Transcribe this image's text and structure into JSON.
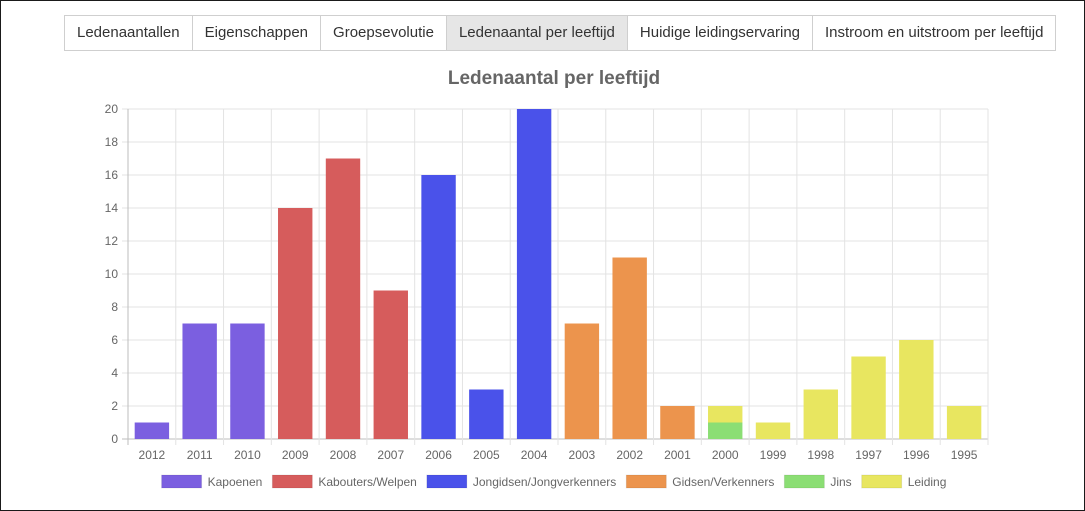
{
  "tabs": [
    {
      "label": "Ledenaantallen",
      "active": false
    },
    {
      "label": "Eigenschappen",
      "active": false
    },
    {
      "label": "Groepsevolutie",
      "active": false
    },
    {
      "label": "Ledenaantal per leeftijd",
      "active": true
    },
    {
      "label": "Huidige leidingservaring",
      "active": false
    },
    {
      "label": "Instroom en uitstroom per leeftijd",
      "active": false
    }
  ],
  "chart_data": {
    "type": "bar",
    "stacked": true,
    "title": "Ledenaantal per leeftijd",
    "categories": [
      "2012",
      "2011",
      "2010",
      "2009",
      "2008",
      "2007",
      "2006",
      "2005",
      "2004",
      "2003",
      "2002",
      "2001",
      "2000",
      "1999",
      "1998",
      "1997",
      "1996",
      "1995"
    ],
    "ylim": [
      0,
      20
    ],
    "yticks": [
      0,
      2,
      4,
      6,
      8,
      10,
      12,
      14,
      16,
      18,
      20
    ],
    "grid": true,
    "legend_position": "bottom",
    "series": [
      {
        "name": "Kapoenen",
        "color": "#7b5fe0",
        "values": [
          1,
          7,
          7,
          0,
          0,
          0,
          0,
          0,
          0,
          0,
          0,
          0,
          0,
          0,
          0,
          0,
          0,
          0
        ]
      },
      {
        "name": "Kabouters/Welpen",
        "color": "#d65c5c",
        "values": [
          0,
          0,
          0,
          14,
          17,
          9,
          0,
          0,
          0,
          0,
          0,
          0,
          0,
          0,
          0,
          0,
          0,
          0
        ]
      },
      {
        "name": "Jongidsen/Jongverkenners",
        "color": "#4a52ea",
        "values": [
          0,
          0,
          0,
          0,
          0,
          0,
          16,
          3,
          20,
          0,
          0,
          0,
          0,
          0,
          0,
          0,
          0,
          0
        ]
      },
      {
        "name": "Gidsen/Verkenners",
        "color": "#ec944d",
        "values": [
          0,
          0,
          0,
          0,
          0,
          0,
          0,
          0,
          0,
          7,
          11,
          2,
          0,
          0,
          0,
          0,
          0,
          0
        ]
      },
      {
        "name": "Jins",
        "color": "#8bde74",
        "values": [
          0,
          0,
          0,
          0,
          0,
          0,
          0,
          0,
          0,
          0,
          0,
          0,
          1,
          0,
          0,
          0,
          0,
          0
        ]
      },
      {
        "name": "Leiding",
        "color": "#e8e660",
        "values": [
          0,
          0,
          0,
          0,
          0,
          0,
          0,
          0,
          0,
          0,
          0,
          0,
          1,
          1,
          3,
          5,
          6,
          2
        ]
      }
    ]
  }
}
